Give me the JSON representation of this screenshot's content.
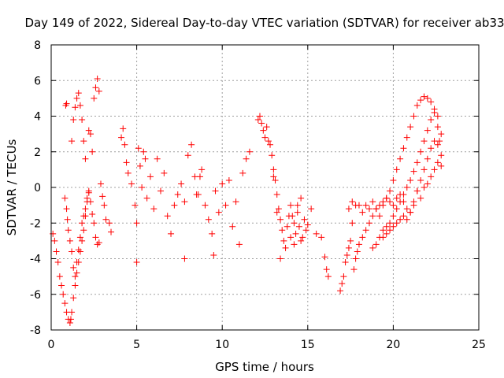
{
  "chart_data": {
    "type": "scatter",
    "title": "Day 149 of 2022, Sidereal Day-to-day VTEC variation (SDTVAR) for receiver ab33",
    "xlabel": "GPS time / hours",
    "ylabel": "SDTVAR / TECUs",
    "xlim": [
      0,
      25
    ],
    "ylim": [
      -8,
      8
    ],
    "xticks": [
      0,
      5,
      10,
      15,
      20,
      25
    ],
    "yticks": [
      -8,
      -6,
      -4,
      -2,
      0,
      2,
      4,
      6,
      8
    ],
    "grid": true,
    "marker": "+",
    "color": "#ff0000",
    "series": [
      {
        "name": "SDTVAR",
        "x": [
          0.1,
          0.2,
          0.3,
          0.4,
          0.5,
          0.6,
          0.7,
          0.8,
          0.9,
          1.0,
          1.1,
          1.15,
          1.2,
          1.3,
          1.4,
          1.5,
          1.6,
          1.7,
          1.8,
          1.9,
          2.0,
          2.1,
          2.2,
          0.8,
          0.9,
          0.95,
          1.0,
          1.1,
          1.2,
          1.3,
          1.4,
          1.5,
          1.6,
          1.7,
          1.8,
          1.9,
          2.0,
          2.1,
          2.2,
          2.3,
          2.4,
          2.5,
          2.6,
          2.7,
          2.8,
          0.85,
          0.9,
          1.2,
          1.3,
          1.4,
          1.5,
          1.6,
          1.7,
          1.8,
          1.9,
          2.0,
          2.2,
          2.3,
          2.4,
          2.5,
          2.6,
          2.7,
          2.8,
          2.9,
          3.0,
          3.1,
          3.2,
          3.4,
          3.5,
          4.1,
          4.2,
          4.3,
          4.4,
          4.5,
          4.7,
          4.9,
          5.0,
          5.1,
          5.2,
          5.3,
          5.4,
          5.5,
          5.6,
          5.8,
          6.0,
          6.2,
          6.4,
          6.6,
          6.8,
          7.0,
          7.2,
          7.4,
          7.6,
          7.8,
          8.0,
          8.2,
          8.4,
          8.5,
          8.6,
          8.7,
          8.8,
          9.0,
          9.2,
          9.4,
          9.6,
          9.8,
          10.0,
          10.2,
          10.4,
          10.6,
          10.8,
          11.0,
          11.2,
          11.4,
          11.6,
          5.0,
          9.5,
          7.8,
          12.1,
          12.2,
          12.3,
          12.4,
          12.5,
          12.6,
          12.7,
          12.8,
          12.9,
          13.0,
          13.1,
          13.2,
          13.3,
          13.4,
          13.5,
          13.6,
          13.7,
          13.8,
          13.9,
          14.0,
          14.1,
          14.2,
          14.3,
          14.4,
          14.5,
          14.6,
          14.7,
          14.8,
          14.9,
          15.0,
          15.2,
          14.0,
          14.2,
          14.4,
          14.6,
          13.0,
          13.2,
          13.4,
          15.5,
          15.8,
          16.0,
          16.1,
          16.2,
          16.9,
          17.0,
          17.1,
          17.2,
          17.3,
          17.4,
          17.5,
          17.6,
          17.7,
          17.8,
          17.9,
          18.0,
          18.2,
          18.4,
          18.6,
          18.8,
          19.0,
          19.2,
          19.4,
          19.6,
          19.8,
          20.0,
          20.2,
          20.4,
          20.6,
          20.8,
          21.0,
          21.2,
          21.4,
          21.6,
          21.8,
          22.0,
          22.2,
          22.4,
          22.6,
          22.7,
          18.8,
          19.0,
          19.2,
          19.4,
          19.6,
          19.8,
          20.0,
          20.2,
          20.4,
          20.6,
          20.8,
          21.0,
          21.2,
          21.4,
          21.6,
          21.8,
          22.0,
          22.2,
          22.4,
          22.6,
          22.8,
          19.4,
          19.6,
          19.8,
          20.0,
          20.2,
          20.4,
          20.6,
          20.8,
          21.0,
          21.2,
          21.4,
          21.6,
          21.8,
          22.0,
          22.2,
          22.4,
          22.6,
          22.8,
          17.4,
          17.6,
          17.8,
          18.0,
          18.2,
          18.4,
          18.6,
          18.8,
          19.0,
          19.2,
          19.4,
          19.6,
          19.8,
          20.0,
          20.2,
          20.4,
          20.6,
          20.8,
          21.0,
          21.2,
          21.4,
          21.6,
          21.8,
          22.0,
          22.2,
          22.4,
          22.6,
          22.8
        ],
        "y": [
          -2.6,
          -3.0,
          -3.6,
          -4.2,
          -5.0,
          -5.5,
          -6.0,
          -6.5,
          -7.0,
          -7.4,
          -7.6,
          -7.4,
          -7.0,
          -6.2,
          -5.5,
          -4.8,
          -4.2,
          -3.6,
          -3.0,
          -2.4,
          -1.6,
          -0.8,
          -0.2,
          -0.6,
          -1.2,
          -1.8,
          -2.4,
          -3.0,
          -3.6,
          -4.5,
          -5.0,
          -4.2,
          -3.5,
          -2.8,
          -2.0,
          -1.6,
          -1.2,
          -0.6,
          -0.3,
          -0.8,
          -1.5,
          -2.0,
          -2.8,
          -3.2,
          -3.1,
          4.6,
          4.7,
          2.6,
          3.8,
          4.5,
          5.0,
          5.3,
          4.6,
          3.8,
          2.6,
          1.6,
          3.2,
          3.0,
          2.0,
          5.0,
          5.6,
          6.1,
          5.4,
          0.2,
          -0.5,
          -1.0,
          -1.8,
          -2.0,
          -2.5,
          2.8,
          3.3,
          2.4,
          1.4,
          0.8,
          0.2,
          -1.0,
          -2.0,
          2.2,
          1.2,
          0.0,
          2.0,
          1.6,
          -0.6,
          0.6,
          -1.2,
          1.6,
          -0.2,
          0.8,
          -1.6,
          -2.6,
          -1.0,
          -0.4,
          0.2,
          -0.8,
          1.8,
          2.4,
          0.6,
          -0.4,
          -0.4,
          0.6,
          1.0,
          -1.0,
          -1.8,
          -2.6,
          -0.2,
          -1.4,
          0.2,
          -1.0,
          0.4,
          -2.2,
          -0.8,
          -3.2,
          0.8,
          1.6,
          2.0,
          -4.2,
          -3.8,
          -4.0,
          3.8,
          4.0,
          3.6,
          3.2,
          2.8,
          3.4,
          2.6,
          2.4,
          1.8,
          1.0,
          0.4,
          -0.4,
          -1.2,
          -1.8,
          -2.4,
          -3.0,
          -3.4,
          -2.2,
          -1.6,
          -1.0,
          -1.6,
          -2.0,
          -2.6,
          -1.4,
          -2.2,
          -3.0,
          -2.8,
          -1.8,
          -2.4,
          -2.1,
          -1.2,
          -2.8,
          -3.2,
          -1.0,
          -0.6,
          0.6,
          -1.4,
          -4.0,
          -2.6,
          -2.8,
          -3.9,
          -4.6,
          -5.0,
          -5.8,
          -5.4,
          -5.0,
          -4.2,
          -3.8,
          -3.4,
          -3.0,
          -2.0,
          -4.6,
          -4.0,
          -3.6,
          -3.2,
          -2.8,
          -2.4,
          -2.0,
          -1.6,
          -1.2,
          -1.0,
          -0.8,
          -0.6,
          -0.2,
          0.4,
          1.0,
          1.6,
          2.2,
          2.8,
          3.4,
          4.0,
          4.6,
          4.9,
          5.1,
          5.0,
          4.8,
          4.2,
          3.4,
          2.6,
          -3.4,
          -3.2,
          -2.8,
          -2.4,
          -2.2,
          -2.0,
          -1.6,
          -1.2,
          -0.8,
          -0.4,
          0.0,
          0.4,
          0.9,
          1.4,
          2.0,
          2.6,
          3.2,
          3.8,
          4.4,
          4.0,
          3.0,
          -2.8,
          -2.6,
          -2.4,
          -2.2,
          -2.0,
          -1.8,
          -1.6,
          -1.8,
          -1.4,
          -0.8,
          -0.2,
          0.4,
          1.0,
          1.6,
          2.2,
          2.6,
          2.4,
          1.8,
          -1.2,
          -0.8,
          -1.0,
          -1.0,
          -1.4,
          -1.0,
          -1.2,
          -0.8,
          -1.2,
          -1.6,
          -1.0,
          -0.6,
          -0.8,
          -1.0,
          -0.6,
          -0.4,
          -0.8,
          -1.2,
          -1.4,
          -1.0,
          -0.2,
          -0.6,
          0.0,
          0.2,
          0.6,
          1.0,
          1.4,
          1.2
        ]
      }
    ]
  }
}
